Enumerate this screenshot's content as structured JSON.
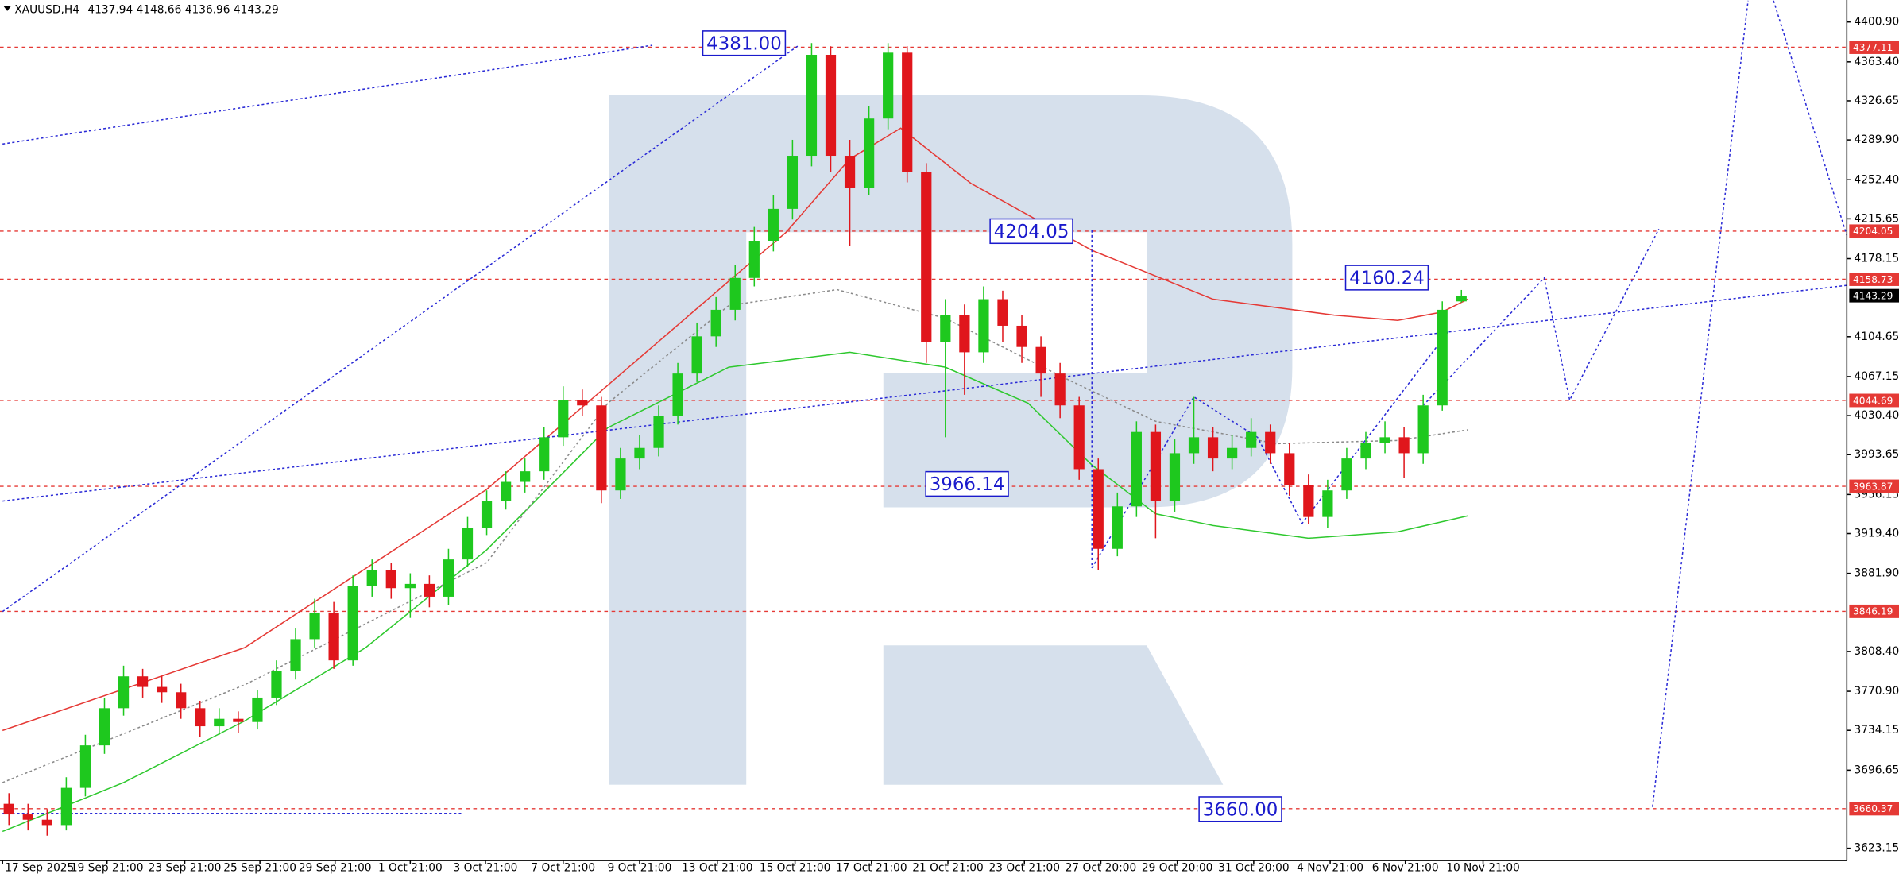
{
  "chart_data": {
    "type": "candlestick",
    "title": "XAUUSD,H4",
    "x": [
      1,
      4,
      7,
      10,
      13,
      16,
      19,
      22,
      25,
      28,
      31,
      34,
      37,
      40,
      43,
      46,
      49,
      52,
      55,
      58,
      61,
      64,
      67,
      70,
      73,
      76,
      79,
      82,
      85,
      88,
      91,
      94,
      97,
      100,
      103,
      106,
      109,
      112,
      115,
      118,
      121,
      124,
      127,
      130,
      133,
      136,
      139,
      142,
      145,
      148,
      151,
      154,
      157,
      160,
      163,
      166,
      169,
      172,
      175,
      178,
      181,
      184,
      187,
      190,
      193,
      196,
      199,
      202,
      205,
      208,
      211,
      214,
      217,
      220,
      223,
      226,
      229
    ],
    "open": [
      3665,
      3655,
      3650,
      3645,
      3680,
      3720,
      3755,
      3785,
      3775,
      3770,
      3755,
      3738,
      3745,
      3742,
      3765,
      3790,
      3820,
      3845,
      3800,
      3870,
      3885,
      3868,
      3872,
      3860,
      3895,
      3925,
      3950,
      3968,
      3978,
      4010,
      4045,
      4040,
      3960,
      3990,
      4000,
      4030,
      4070,
      4105,
      4130,
      4160,
      4195,
      4225,
      4275,
      4370,
      4275,
      4245,
      4310,
      4372,
      4260,
      4100,
      4125,
      4090,
      4140,
      4115,
      4095,
      4070,
      4040,
      3980,
      3905,
      3945,
      4015,
      3950,
      3995,
      4010,
      3990,
      4000,
      4015,
      3995,
      3965,
      3935,
      3960,
      3990,
      4005,
      4010,
      3995,
      4040,
      4137.94
    ],
    "high": [
      3675,
      3665,
      3660,
      3690,
      3730,
      3765,
      3795,
      3792,
      3785,
      3778,
      3762,
      3755,
      3752,
      3772,
      3800,
      3830,
      3858,
      3855,
      3880,
      3895,
      3892,
      3882,
      3880,
      3905,
      3935,
      3960,
      3978,
      3990,
      4020,
      4058,
      4055,
      4048,
      4000,
      4012,
      4040,
      4080,
      4118,
      4142,
      4172,
      4208,
      4238,
      4290,
      4381,
      4378,
      4290,
      4322,
      4381,
      4378,
      4268,
      4140,
      4135,
      4152,
      4148,
      4125,
      4105,
      4080,
      4048,
      3990,
      3958,
      4025,
      4022,
      4008,
      4048,
      4020,
      4012,
      4028,
      4022,
      4005,
      3975,
      3970,
      4000,
      4015,
      4025,
      4020,
      4050,
      4138,
      4148.66
    ],
    "low": [
      3645,
      3640,
      3635,
      3640,
      3672,
      3712,
      3748,
      3765,
      3760,
      3745,
      3728,
      3730,
      3732,
      3735,
      3758,
      3782,
      3812,
      3792,
      3795,
      3860,
      3858,
      3840,
      3850,
      3852,
      3888,
      3918,
      3942,
      3958,
      3970,
      4002,
      4030,
      3948,
      3952,
      3980,
      3992,
      4022,
      4062,
      4095,
      4120,
      4152,
      4185,
      4215,
      4265,
      4260,
      4190,
      4238,
      4300,
      4250,
      4080,
      4010,
      4050,
      4080,
      4100,
      4080,
      4048,
      4028,
      3970,
      3885,
      3898,
      3935,
      3915,
      3940,
      3985,
      3978,
      3980,
      3992,
      3985,
      3955,
      3928,
      3925,
      3952,
      3980,
      3995,
      3972,
      3985,
      4035,
      4136.96
    ],
    "close": [
      3655,
      3650,
      3645,
      3680,
      3720,
      3755,
      3785,
      3775,
      3770,
      3755,
      3738,
      3745,
      3742,
      3765,
      3790,
      3820,
      3845,
      3800,
      3870,
      3885,
      3868,
      3872,
      3860,
      3895,
      3925,
      3950,
      3968,
      3978,
      4010,
      4045,
      4040,
      3960,
      3990,
      4000,
      4030,
      4070,
      4105,
      4130,
      4160,
      4195,
      4225,
      4275,
      4370,
      4275,
      4245,
      4310,
      4372,
      4260,
      4100,
      4125,
      4090,
      4140,
      4115,
      4095,
      4070,
      4040,
      3980,
      3905,
      3945,
      4015,
      3950,
      3995,
      4010,
      3990,
      4000,
      4015,
      3995,
      3965,
      3935,
      3960,
      3990,
      4005,
      4010,
      3995,
      4040,
      4130,
      4143.29
    ],
    "up_color": "#1ec81e",
    "down_color": "#e0161c",
    "xlim": [
      -0.4,
      289.5
    ],
    "xticks": [
      {
        "value": 0,
        "label": "17 Sep 2025"
      },
      {
        "value": 16.4,
        "label": "19 Sep 21:00"
      },
      {
        "value": 28.6,
        "label": "23 Sep 21:00"
      },
      {
        "value": 40.4,
        "label": "25 Sep 21:00"
      },
      {
        "value": 52.2,
        "label": "29 Sep 21:00"
      },
      {
        "value": 64,
        "label": "1 Oct 21:00"
      },
      {
        "value": 75.8,
        "label": "3 Oct 21:00"
      },
      {
        "value": 88,
        "label": "7 Oct 21:00"
      },
      {
        "value": 100,
        "label": "9 Oct 21:00"
      },
      {
        "value": 112.2,
        "label": "13 Oct 21:00"
      },
      {
        "value": 124.4,
        "label": "15 Oct 21:00"
      },
      {
        "value": 136.4,
        "label": "17 Oct 21:00"
      },
      {
        "value": 148.4,
        "label": "21 Oct 21:00"
      },
      {
        "value": 160.4,
        "label": "23 Oct 21:00"
      },
      {
        "value": 172.4,
        "label": "27 Oct 20:00"
      },
      {
        "value": 184.4,
        "label": "29 Oct 20:00"
      },
      {
        "value": 196.4,
        "label": "31 Oct 20:00"
      },
      {
        "value": 208.4,
        "label": "4 Nov 21:00"
      },
      {
        "value": 220.2,
        "label": "6 Nov 21:00"
      },
      {
        "value": 232.4,
        "label": "10 Nov 21:00"
      }
    ],
    "ylim": [
      3611.6,
      4421.6
    ],
    "yticks": [
      {
        "value": 4400.9,
        "label": "4400.90"
      },
      {
        "value": 4363.4,
        "label": "4363.40"
      },
      4326.65,
      {
        "value": 4289.9,
        "label": "4289.90"
      },
      {
        "value": 4252.4,
        "label": "4252.40"
      },
      4215.65,
      4178.15,
      4104.65,
      4067.15,
      {
        "value": 4030.4,
        "label": "4030.40"
      },
      3993.65,
      3956.15,
      {
        "value": 3919.4,
        "label": "3919.40"
      },
      {
        "value": 3881.9,
        "label": "3881.90"
      },
      {
        "value": 3808.4,
        "label": "3808.40"
      },
      {
        "value": 3770.9,
        "label": "3770.90"
      },
      3734.15,
      3696.65,
      3623.15
    ],
    "levels": [
      4377.11,
      4204.05,
      4158.73,
      4044.69,
      3963.87,
      3846.19,
      3660.37
    ],
    "level_color": "#e53935",
    "overlays": [
      {
        "color": "#e53935",
        "style": "solid",
        "x": [
          0,
          38,
          76,
          114,
          123,
          133,
          141,
          152,
          171,
          190,
          209,
          219,
          226,
          230
        ],
        "values": [
          3734,
          3812,
          3961,
          4157,
          4203,
          4272,
          4301,
          4249,
          4186,
          4140,
          4125,
          4120,
          4128,
          4140
        ]
      },
      {
        "color": "#2ec82e",
        "style": "solid",
        "x": [
          0,
          19,
          38,
          57,
          76,
          95,
          114,
          133,
          148,
          161,
          171,
          181,
          190,
          205,
          219,
          230
        ],
        "values": [
          3639,
          3685,
          3743,
          3812,
          3904,
          4019,
          4076,
          4090,
          4076,
          4042,
          3984,
          3938,
          3927,
          3915,
          3921,
          3936
        ]
      },
      {
        "color": "#8a8a8a",
        "style": "dotted",
        "x": [
          0,
          38,
          76,
          95,
          114,
          131,
          148,
          167,
          181,
          200,
          219,
          230
        ],
        "values": [
          3685,
          3777,
          3892,
          4042,
          4134,
          4149,
          4122,
          4065,
          4025,
          4004,
          4007,
          4017
        ]
      }
    ],
    "trendline_color": "#2a2ad6",
    "trendlines": [
      {
        "x": [
          0,
          102
        ],
        "values": [
          4286,
          4379
        ]
      },
      {
        "x": [
          0,
          125
        ],
        "values": [
          3846,
          4379
        ]
      },
      {
        "x": [
          0,
          289.5
        ],
        "values": [
          3950,
          4153
        ]
      },
      {
        "x": [
          0,
          72
        ],
        "values": [
          3656,
          3656
        ]
      },
      {
        "x": [
          171,
          171
        ],
        "values": [
          4205,
          3887
        ]
      },
      {
        "x": [
          171,
          187,
          197,
          204,
          227
        ],
        "values": [
          3887,
          4048,
          4010,
          3929,
          4110
        ]
      },
      {
        "x": [
          223,
          242,
          246,
          260
        ],
        "values": [
          4040,
          4160,
          4045,
          4206
        ]
      },
      {
        "x": [
          259,
          274
        ],
        "values": [
          3662,
          4421
        ]
      },
      {
        "x": [
          278,
          289.5
        ],
        "values": [
          4421,
          4200
        ]
      }
    ],
    "annotations": [
      {
        "x": 116.4,
        "value": 4381,
        "label": "4381.00"
      },
      {
        "x": 161.5,
        "value": 4204.05
      },
      {
        "x": 217.3,
        "value": 4160.24
      },
      {
        "x": 151.4,
        "value": 3966.14
      },
      {
        "x": 194.3,
        "value": 3660,
        "label": "3660.00"
      }
    ]
  }
}
